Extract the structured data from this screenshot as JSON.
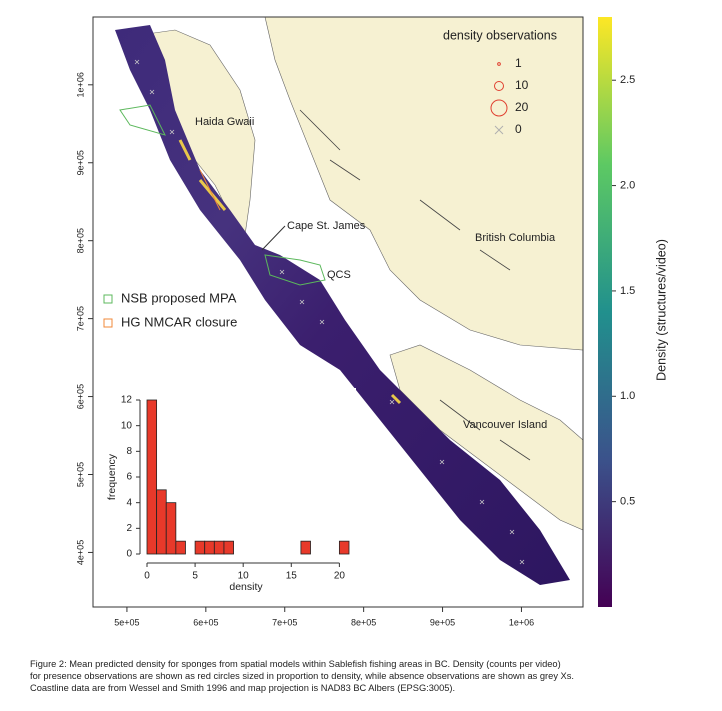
{
  "map": {
    "xlim": [
      457000,
      1078000
    ],
    "ylim": [
      330000,
      1087000
    ],
    "xticks": [
      {
        "value": 500000,
        "label": "5e+05"
      },
      {
        "value": 600000,
        "label": "6e+05"
      },
      {
        "value": 700000,
        "label": "7e+05"
      },
      {
        "value": 800000,
        "label": "8e+05"
      },
      {
        "value": 900000,
        "label": "9e+05"
      },
      {
        "value": 1000000,
        "label": "1e+06"
      }
    ],
    "yticks": [
      {
        "value": 400000,
        "label": "4e+05"
      },
      {
        "value": 500000,
        "label": "5e+05"
      },
      {
        "value": 600000,
        "label": "6e+05"
      },
      {
        "value": 700000,
        "label": "7e+05"
      },
      {
        "value": 800000,
        "label": "8e+05"
      },
      {
        "value": 900000,
        "label": "9e+05"
      },
      {
        "value": 1000000,
        "label": "1e+06"
      }
    ],
    "labels": [
      "Haida Gwaii",
      "Cape St. James",
      "QCS",
      "British Columbia",
      "Vancouver Island"
    ]
  },
  "area_legend": [
    {
      "name": "NSB proposed MPA",
      "color": "#5cb85c"
    },
    {
      "name": "HG NMCAR closure",
      "color": "#f0883a"
    }
  ],
  "observation_legend": {
    "title": "density observations",
    "presence": [
      1,
      10,
      20
    ],
    "presence_color": "#e04030",
    "absence": 0,
    "absence_color": "#b0b0b0"
  },
  "colorbar": {
    "label": "Density (structures/video)",
    "lim": [
      0,
      2.8
    ],
    "ticks": [
      0.5,
      {
        "value": 1,
        "label": "1.0"
      },
      1.5,
      {
        "value": 2,
        "label": "2.0"
      },
      2.5
    ]
  },
  "histogram": {
    "type": "histogram",
    "bins": [
      0,
      1,
      2,
      3,
      4,
      5,
      6,
      7,
      8,
      9,
      10,
      11,
      12,
      13,
      14,
      15,
      16,
      17,
      18,
      19,
      20,
      21
    ],
    "counts": [
      12,
      5,
      4,
      1,
      0,
      1,
      1,
      1,
      1,
      0,
      0,
      0,
      0,
      0,
      0,
      0,
      1,
      0,
      0,
      0,
      1
    ],
    "color": "#e8392a",
    "xlim": [
      0,
      21
    ],
    "ylim": [
      0,
      12
    ],
    "xticks": [
      0,
      5,
      10,
      15,
      20
    ],
    "yticks": [
      0,
      2,
      4,
      6,
      8,
      10,
      12
    ],
    "xlabel": "density",
    "ylabel": "frequency"
  },
  "caption": [
    "Figure 2: Mean predicted density for sponges from spatial models within Sablefish fishing areas in BC. Density (counts per video)",
    "for presence observations are shown as red circles sized in proportion to density, while absence observations are shown as grey Xs.",
    "Coastline data are from Wessel and Smith 1996 and map projection is NAD83 BC Albers (EPSG:3005)."
  ]
}
